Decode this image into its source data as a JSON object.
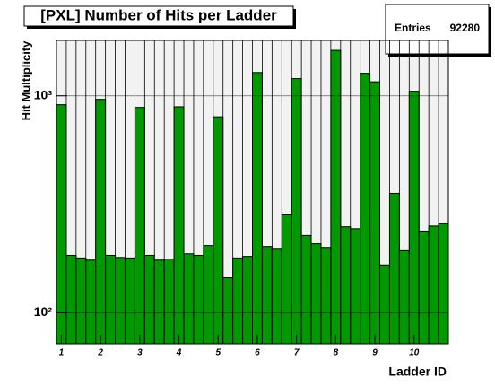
{
  "chart_data": {
    "type": "histogram",
    "title": "[PXL] Number of Hits per Ladder",
    "x_label": "Ladder ID",
    "y_label": "Hit Multiplicity",
    "stats": {
      "label": "Entries",
      "value": 92280
    },
    "bins": [
      0.875,
      1.125,
      1.375,
      1.625,
      1.875,
      2.125,
      2.375,
      2.625,
      2.875,
      3.125,
      3.375,
      3.625,
      3.875,
      4.125,
      4.375,
      4.625,
      4.875,
      5.125,
      5.375,
      5.625,
      5.875,
      6.125,
      6.375,
      6.625,
      6.875,
      7.125,
      7.375,
      7.625,
      7.875,
      8.125,
      8.375,
      8.625,
      8.875,
      9.125,
      9.375,
      9.625,
      9.875,
      10.125,
      10.375,
      10.625,
      10.875
    ],
    "values": [
      910,
      184,
      179,
      175,
      963,
      184,
      180,
      179,
      884,
      184,
      175,
      177,
      890,
      187,
      184,
      204,
      800,
      145,
      179,
      182,
      1280,
      202,
      198,
      285,
      1200,
      227,
      208,
      200,
      1620,
      249,
      244,
      1270,
      1160,
      166,
      355,
      195,
      1050,
      238,
      251,
      259
    ],
    "color": "#009900",
    "xlim": [
      0.875,
      10.875
    ],
    "xticks": [
      1,
      2,
      3,
      4,
      5,
      6,
      7,
      8,
      9,
      10
    ],
    "ylim": [
      72,
      1800
    ],
    "log_y": true,
    "yticks": [
      {
        "value": 100,
        "label": "10²"
      },
      {
        "value": 1000,
        "label": "10³"
      }
    ],
    "grid": true
  }
}
